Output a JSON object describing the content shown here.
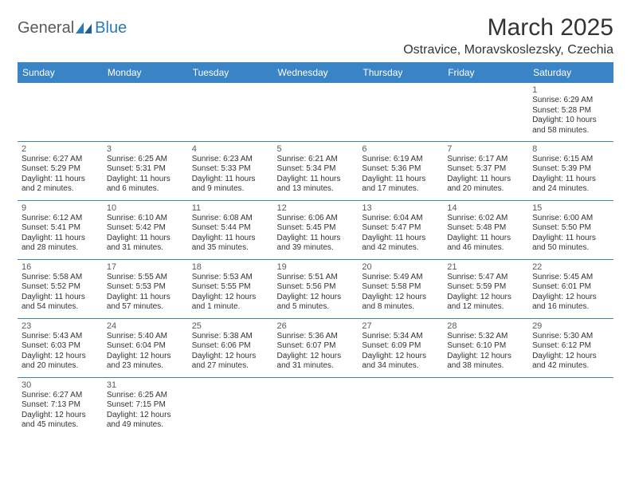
{
  "logo": {
    "text1": "General",
    "text2": "Blue"
  },
  "title": "March 2025",
  "location": "Ostravice, Moravskoslezsky, Czechia",
  "colors": {
    "header_bg": "#3a83c4",
    "header_text": "#ffffff",
    "border": "#3a83c4",
    "body_text": "#333333",
    "daynum": "#5a5a5a",
    "logo_gray": "#5a5a5a",
    "logo_blue": "#2a7ab8",
    "background": "#ffffff"
  },
  "weekdays": [
    "Sunday",
    "Monday",
    "Tuesday",
    "Wednesday",
    "Thursday",
    "Friday",
    "Saturday"
  ],
  "weeks": [
    [
      null,
      null,
      null,
      null,
      null,
      null,
      {
        "n": "1",
        "sr": "Sunrise: 6:29 AM",
        "ss": "Sunset: 5:28 PM",
        "d1": "Daylight: 10 hours",
        "d2": "and 58 minutes."
      }
    ],
    [
      {
        "n": "2",
        "sr": "Sunrise: 6:27 AM",
        "ss": "Sunset: 5:29 PM",
        "d1": "Daylight: 11 hours",
        "d2": "and 2 minutes."
      },
      {
        "n": "3",
        "sr": "Sunrise: 6:25 AM",
        "ss": "Sunset: 5:31 PM",
        "d1": "Daylight: 11 hours",
        "d2": "and 6 minutes."
      },
      {
        "n": "4",
        "sr": "Sunrise: 6:23 AM",
        "ss": "Sunset: 5:33 PM",
        "d1": "Daylight: 11 hours",
        "d2": "and 9 minutes."
      },
      {
        "n": "5",
        "sr": "Sunrise: 6:21 AM",
        "ss": "Sunset: 5:34 PM",
        "d1": "Daylight: 11 hours",
        "d2": "and 13 minutes."
      },
      {
        "n": "6",
        "sr": "Sunrise: 6:19 AM",
        "ss": "Sunset: 5:36 PM",
        "d1": "Daylight: 11 hours",
        "d2": "and 17 minutes."
      },
      {
        "n": "7",
        "sr": "Sunrise: 6:17 AM",
        "ss": "Sunset: 5:37 PM",
        "d1": "Daylight: 11 hours",
        "d2": "and 20 minutes."
      },
      {
        "n": "8",
        "sr": "Sunrise: 6:15 AM",
        "ss": "Sunset: 5:39 PM",
        "d1": "Daylight: 11 hours",
        "d2": "and 24 minutes."
      }
    ],
    [
      {
        "n": "9",
        "sr": "Sunrise: 6:12 AM",
        "ss": "Sunset: 5:41 PM",
        "d1": "Daylight: 11 hours",
        "d2": "and 28 minutes."
      },
      {
        "n": "10",
        "sr": "Sunrise: 6:10 AM",
        "ss": "Sunset: 5:42 PM",
        "d1": "Daylight: 11 hours",
        "d2": "and 31 minutes."
      },
      {
        "n": "11",
        "sr": "Sunrise: 6:08 AM",
        "ss": "Sunset: 5:44 PM",
        "d1": "Daylight: 11 hours",
        "d2": "and 35 minutes."
      },
      {
        "n": "12",
        "sr": "Sunrise: 6:06 AM",
        "ss": "Sunset: 5:45 PM",
        "d1": "Daylight: 11 hours",
        "d2": "and 39 minutes."
      },
      {
        "n": "13",
        "sr": "Sunrise: 6:04 AM",
        "ss": "Sunset: 5:47 PM",
        "d1": "Daylight: 11 hours",
        "d2": "and 42 minutes."
      },
      {
        "n": "14",
        "sr": "Sunrise: 6:02 AM",
        "ss": "Sunset: 5:48 PM",
        "d1": "Daylight: 11 hours",
        "d2": "and 46 minutes."
      },
      {
        "n": "15",
        "sr": "Sunrise: 6:00 AM",
        "ss": "Sunset: 5:50 PM",
        "d1": "Daylight: 11 hours",
        "d2": "and 50 minutes."
      }
    ],
    [
      {
        "n": "16",
        "sr": "Sunrise: 5:58 AM",
        "ss": "Sunset: 5:52 PM",
        "d1": "Daylight: 11 hours",
        "d2": "and 54 minutes."
      },
      {
        "n": "17",
        "sr": "Sunrise: 5:55 AM",
        "ss": "Sunset: 5:53 PM",
        "d1": "Daylight: 11 hours",
        "d2": "and 57 minutes."
      },
      {
        "n": "18",
        "sr": "Sunrise: 5:53 AM",
        "ss": "Sunset: 5:55 PM",
        "d1": "Daylight: 12 hours",
        "d2": "and 1 minute."
      },
      {
        "n": "19",
        "sr": "Sunrise: 5:51 AM",
        "ss": "Sunset: 5:56 PM",
        "d1": "Daylight: 12 hours",
        "d2": "and 5 minutes."
      },
      {
        "n": "20",
        "sr": "Sunrise: 5:49 AM",
        "ss": "Sunset: 5:58 PM",
        "d1": "Daylight: 12 hours",
        "d2": "and 8 minutes."
      },
      {
        "n": "21",
        "sr": "Sunrise: 5:47 AM",
        "ss": "Sunset: 5:59 PM",
        "d1": "Daylight: 12 hours",
        "d2": "and 12 minutes."
      },
      {
        "n": "22",
        "sr": "Sunrise: 5:45 AM",
        "ss": "Sunset: 6:01 PM",
        "d1": "Daylight: 12 hours",
        "d2": "and 16 minutes."
      }
    ],
    [
      {
        "n": "23",
        "sr": "Sunrise: 5:43 AM",
        "ss": "Sunset: 6:03 PM",
        "d1": "Daylight: 12 hours",
        "d2": "and 20 minutes."
      },
      {
        "n": "24",
        "sr": "Sunrise: 5:40 AM",
        "ss": "Sunset: 6:04 PM",
        "d1": "Daylight: 12 hours",
        "d2": "and 23 minutes."
      },
      {
        "n": "25",
        "sr": "Sunrise: 5:38 AM",
        "ss": "Sunset: 6:06 PM",
        "d1": "Daylight: 12 hours",
        "d2": "and 27 minutes."
      },
      {
        "n": "26",
        "sr": "Sunrise: 5:36 AM",
        "ss": "Sunset: 6:07 PM",
        "d1": "Daylight: 12 hours",
        "d2": "and 31 minutes."
      },
      {
        "n": "27",
        "sr": "Sunrise: 5:34 AM",
        "ss": "Sunset: 6:09 PM",
        "d1": "Daylight: 12 hours",
        "d2": "and 34 minutes."
      },
      {
        "n": "28",
        "sr": "Sunrise: 5:32 AM",
        "ss": "Sunset: 6:10 PM",
        "d1": "Daylight: 12 hours",
        "d2": "and 38 minutes."
      },
      {
        "n": "29",
        "sr": "Sunrise: 5:30 AM",
        "ss": "Sunset: 6:12 PM",
        "d1": "Daylight: 12 hours",
        "d2": "and 42 minutes."
      }
    ],
    [
      {
        "n": "30",
        "sr": "Sunrise: 6:27 AM",
        "ss": "Sunset: 7:13 PM",
        "d1": "Daylight: 12 hours",
        "d2": "and 45 minutes."
      },
      {
        "n": "31",
        "sr": "Sunrise: 6:25 AM",
        "ss": "Sunset: 7:15 PM",
        "d1": "Daylight: 12 hours",
        "d2": "and 49 minutes."
      },
      null,
      null,
      null,
      null,
      null
    ]
  ]
}
